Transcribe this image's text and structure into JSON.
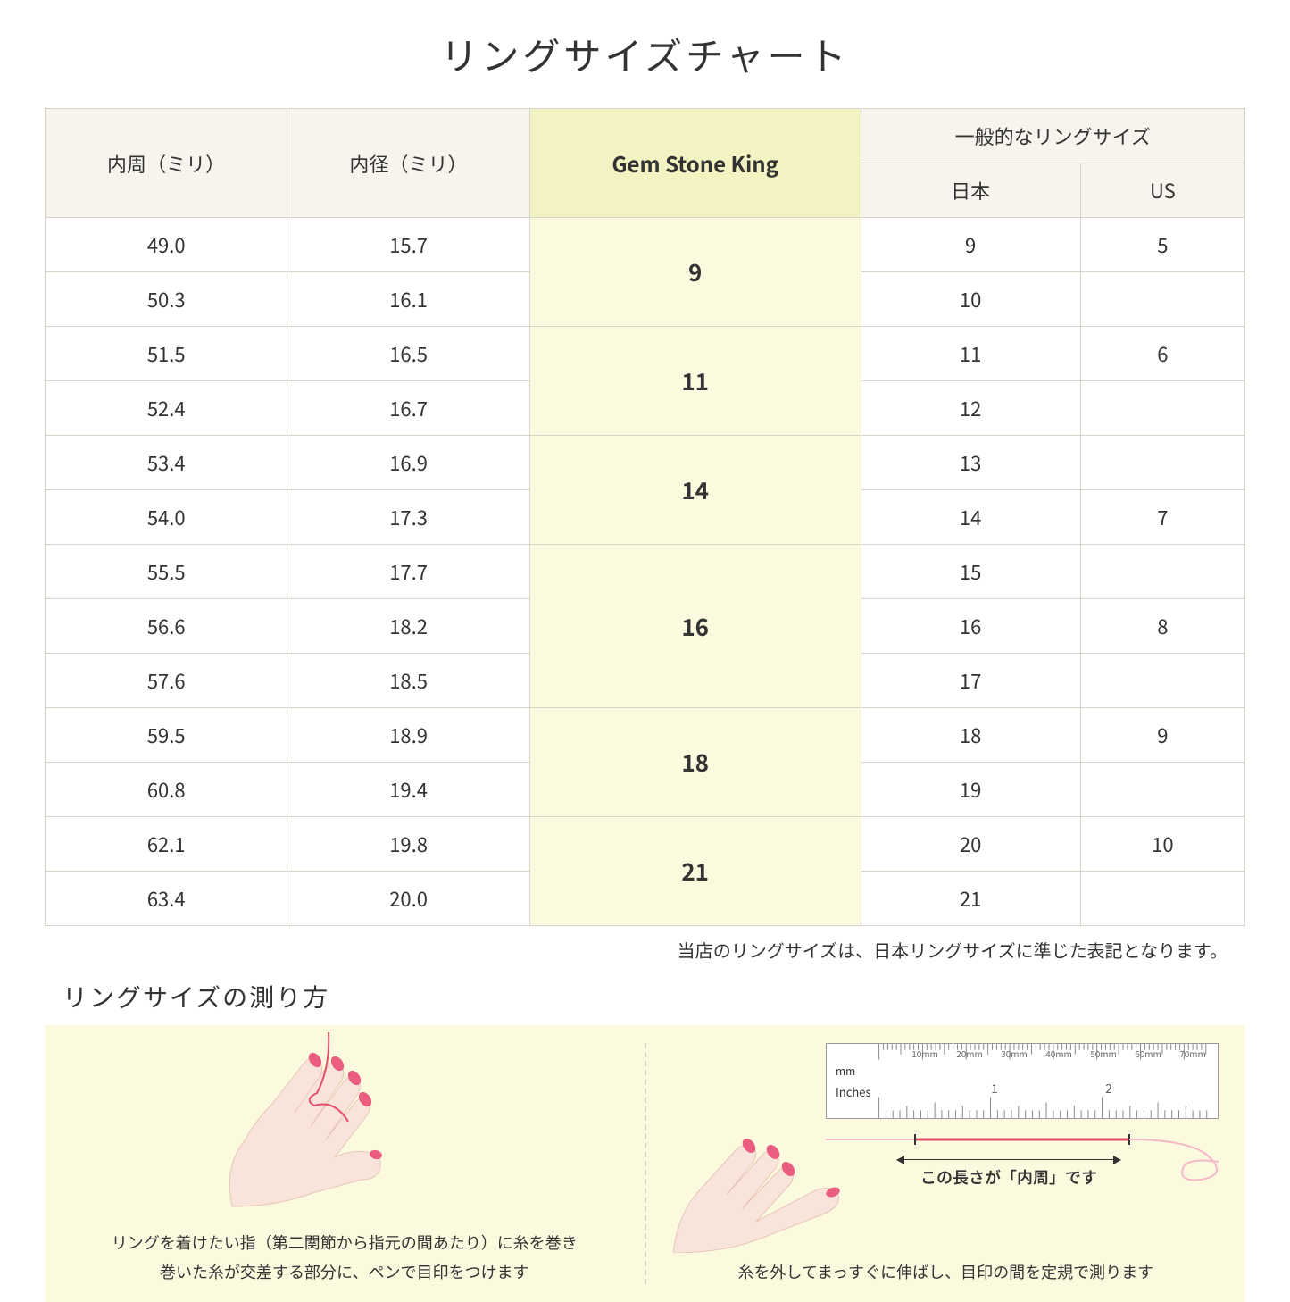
{
  "title": "リングサイズチャート",
  "headers": {
    "circumference": "内周（ミリ）",
    "diameter": "内径（ミリ）",
    "gsk": "Gem Stone King",
    "general": "一般的なリングサイズ",
    "japan": "日本",
    "us": "US"
  },
  "groups": [
    {
      "gsk": "9",
      "rows": [
        {
          "c": "49.0",
          "d": "15.7",
          "jp": "9",
          "us": "5"
        },
        {
          "c": "50.3",
          "d": "16.1",
          "jp": "10",
          "us": ""
        }
      ]
    },
    {
      "gsk": "11",
      "rows": [
        {
          "c": "51.5",
          "d": "16.5",
          "jp": "11",
          "us": "6"
        },
        {
          "c": "52.4",
          "d": "16.7",
          "jp": "12",
          "us": ""
        }
      ]
    },
    {
      "gsk": "14",
      "rows": [
        {
          "c": "53.4",
          "d": "16.9",
          "jp": "13",
          "us": ""
        },
        {
          "c": "54.0",
          "d": "17.3",
          "jp": "14",
          "us": "7"
        }
      ]
    },
    {
      "gsk": "16",
      "rows": [
        {
          "c": "55.5",
          "d": "17.7",
          "jp": "15",
          "us": ""
        },
        {
          "c": "56.6",
          "d": "18.2",
          "jp": "16",
          "us": "8"
        },
        {
          "c": "57.6",
          "d": "18.5",
          "jp": "17",
          "us": ""
        }
      ]
    },
    {
      "gsk": "18",
      "rows": [
        {
          "c": "59.5",
          "d": "18.9",
          "jp": "18",
          "us": "9"
        },
        {
          "c": "60.8",
          "d": "19.4",
          "jp": "19",
          "us": ""
        }
      ]
    },
    {
      "gsk": "21",
      "rows": [
        {
          "c": "62.1",
          "d": "19.8",
          "jp": "20",
          "us": "10"
        },
        {
          "c": "63.4",
          "d": "20.0",
          "jp": "21",
          "us": ""
        }
      ]
    }
  ],
  "note": "当店のリングサイズは、日本リングサイズに準じた表記となります。",
  "howto": {
    "title": "リングサイズの測り方",
    "left_caption": "リングを着けたい指（第二関節から指元の間あたり）に糸を巻き\n巻いた糸が交差する部分に、ペンで目印をつけます",
    "right_caption": "糸を外してまっすぐに伸ばし、目印の間を定規で測ります",
    "measure_label": "この長さが「内周」です",
    "ruler_mm": "mm",
    "ruler_in": "Inches",
    "ruler_mm_marks": [
      "10mm",
      "20mm",
      "30mm",
      "40mm",
      "50mm",
      "60mm",
      "70mm"
    ],
    "ruler_in_marks": [
      "1",
      "2"
    ]
  },
  "colors": {
    "header_bg": "#f6f4ec",
    "gsk_header_bg": "#f3f2c2",
    "gsk_cell_bg": "#fbfadf",
    "border": "#d8d4c8",
    "howto_bg": "#fbfadf",
    "thread": "#e24e6a",
    "skin": "#f9e4dc",
    "nail": "#ea5d7e"
  }
}
